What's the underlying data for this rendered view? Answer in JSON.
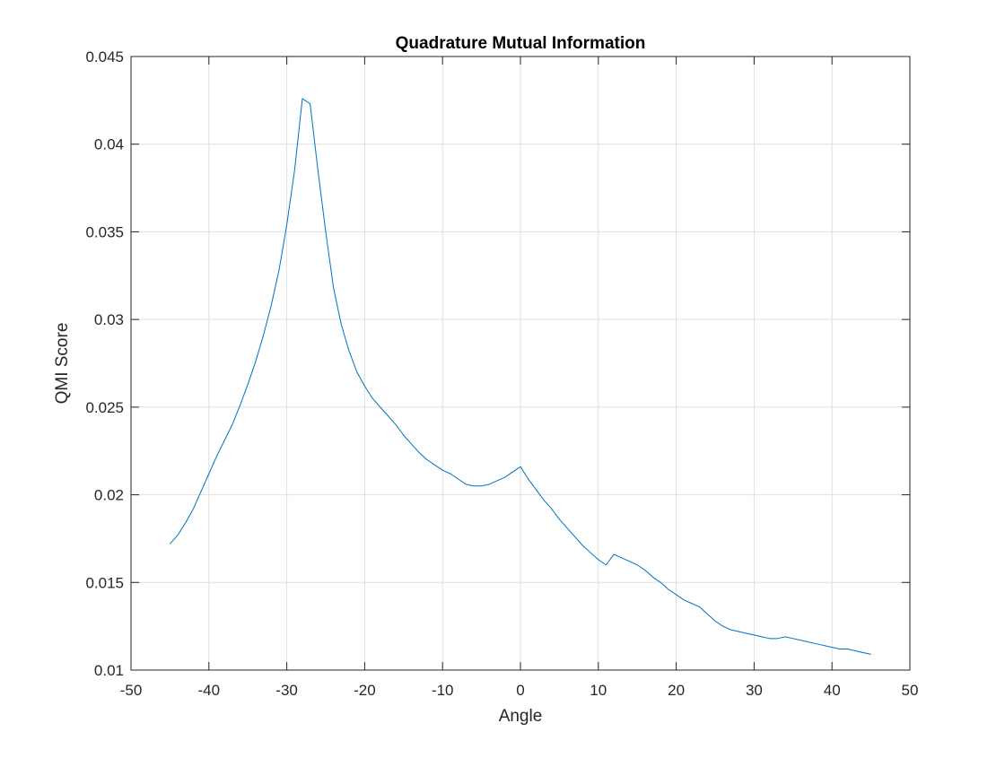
{
  "chart_data": {
    "type": "line",
    "title": "Quadrature Mutual Information",
    "xlabel": "Angle",
    "ylabel": "QMI Score",
    "xlim": [
      -50,
      50
    ],
    "ylim": [
      0.01,
      0.045
    ],
    "xticks": [
      -50,
      -40,
      -30,
      -20,
      -10,
      0,
      10,
      20,
      30,
      40,
      50
    ],
    "yticks": [
      0.01,
      0.015,
      0.02,
      0.025,
      0.03,
      0.035,
      0.04,
      0.045
    ],
    "xtick_labels": [
      "-50",
      "-40",
      "-30",
      "-20",
      "-10",
      "0",
      "10",
      "20",
      "30",
      "40",
      "50"
    ],
    "ytick_labels": [
      "0.01",
      "0.015",
      "0.02",
      "0.025",
      "0.03",
      "0.035",
      "0.04",
      "0.045"
    ],
    "grid": true,
    "box": true,
    "series": [
      {
        "color": "#0072BD",
        "x": [
          -45,
          -44,
          -43,
          -42,
          -41,
          -40,
          -39,
          -38,
          -37,
          -36,
          -35,
          -34,
          -33,
          -32,
          -31,
          -30,
          -29,
          -28,
          -27,
          -26,
          -25,
          -24,
          -23,
          -22,
          -21,
          -20,
          -19,
          -18,
          -17,
          -16,
          -15,
          -14,
          -13,
          -12,
          -11,
          -10,
          -9,
          -8,
          -7,
          -6,
          -5,
          -4,
          -3,
          -2,
          -1,
          0,
          1,
          2,
          3,
          4,
          5,
          6,
          7,
          8,
          9,
          10,
          11,
          12,
          13,
          14,
          15,
          16,
          17,
          18,
          19,
          20,
          21,
          22,
          23,
          24,
          25,
          26,
          27,
          28,
          29,
          30,
          31,
          32,
          33,
          34,
          35,
          36,
          37,
          38,
          39,
          40,
          41,
          42,
          43,
          44,
          45
        ],
        "y": [
          0.0172,
          0.0177,
          0.0184,
          0.0192,
          0.0202,
          0.0212,
          0.0222,
          0.0231,
          0.024,
          0.0251,
          0.0263,
          0.0276,
          0.0291,
          0.0308,
          0.0328,
          0.0354,
          0.0385,
          0.0426,
          0.0423,
          0.0385,
          0.035,
          0.0318,
          0.0297,
          0.0282,
          0.027,
          0.0262,
          0.0255,
          0.025,
          0.0245,
          0.024,
          0.0234,
          0.0229,
          0.0224,
          0.022,
          0.0217,
          0.0214,
          0.0212,
          0.0209,
          0.0206,
          0.0205,
          0.0205,
          0.0206,
          0.0208,
          0.021,
          0.0213,
          0.0216,
          0.0209,
          0.0203,
          0.0197,
          0.0192,
          0.0186,
          0.0181,
          0.0176,
          0.0171,
          0.0167,
          0.0163,
          0.016,
          0.0166,
          0.0164,
          0.0162,
          0.016,
          0.0157,
          0.0153,
          0.015,
          0.0146,
          0.0143,
          0.014,
          0.0138,
          0.0136,
          0.0132,
          0.0128,
          0.0125,
          0.0123,
          0.0122,
          0.0121,
          0.012,
          0.0119,
          0.0118,
          0.0118,
          0.0119,
          0.0118,
          0.0117,
          0.0116,
          0.0115,
          0.0114,
          0.0113,
          0.0112,
          0.0112,
          0.0111,
          0.011,
          0.0109
        ]
      }
    ]
  }
}
